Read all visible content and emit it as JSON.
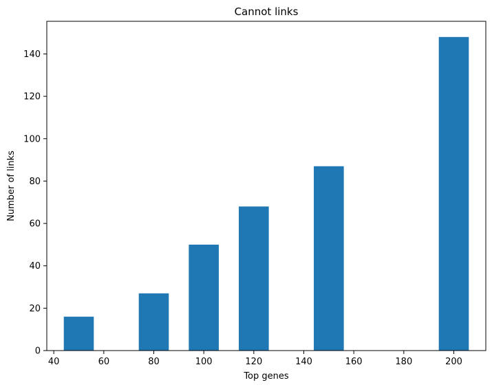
{
  "chart_data": {
    "type": "bar",
    "title": "Cannot links",
    "xlabel": "Top genes",
    "ylabel": "Number of links",
    "bar_width": 12,
    "bars": [
      {
        "x": 50,
        "value": 16
      },
      {
        "x": 80,
        "value": 27
      },
      {
        "x": 100,
        "value": 50
      },
      {
        "x": 120,
        "value": 68
      },
      {
        "x": 150,
        "value": 87
      },
      {
        "x": 200,
        "value": 148
      }
    ],
    "xlim": [
      37.2,
      212.8
    ],
    "ylim": [
      0,
      155.4
    ],
    "xticks": [
      40,
      60,
      80,
      100,
      120,
      140,
      160,
      180,
      200
    ],
    "yticks": [
      0,
      20,
      40,
      60,
      80,
      100,
      120,
      140
    ],
    "grid": false,
    "bar_color": "#1f77b4"
  }
}
